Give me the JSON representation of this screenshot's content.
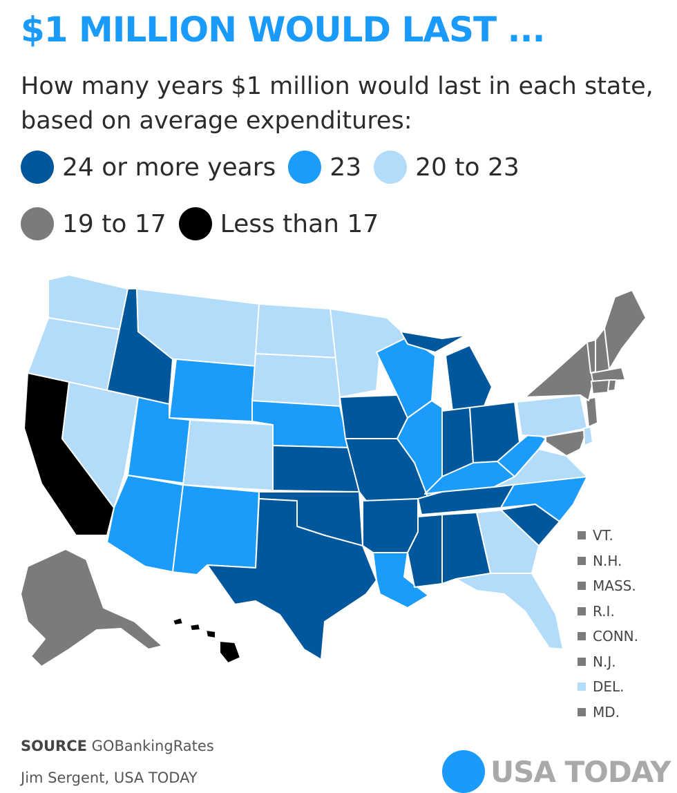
{
  "title": "$1 MILLION WOULD LAST ...",
  "subtitle": "How many years $1 million would last in each state, based on average expenditures:",
  "legend": [
    {
      "label": "24 or more years",
      "color": "#01579b"
    },
    {
      "label": "23",
      "color": "#1b9bfa"
    },
    {
      "label": "20 to 23",
      "color": "#b3dcfb"
    },
    {
      "label": "19 to 17",
      "color": "#7b7b7b"
    },
    {
      "label": "Less than 17",
      "color": "#000000"
    }
  ],
  "small_states": [
    {
      "label": "VT.",
      "color": "#7b7b7b"
    },
    {
      "label": "N.H.",
      "color": "#7b7b7b"
    },
    {
      "label": "MASS.",
      "color": "#7b7b7b"
    },
    {
      "label": "R.I.",
      "color": "#7b7b7b"
    },
    {
      "label": "CONN.",
      "color": "#7b7b7b"
    },
    {
      "label": "N.J.",
      "color": "#7b7b7b"
    },
    {
      "label": "DEL.",
      "color": "#b3dcfb"
    },
    {
      "label": "MD.",
      "color": "#7b7b7b"
    }
  ],
  "source_label": "SOURCE",
  "source_text": "GOBankingRates",
  "credit": "Jim Sergent, USA TODAY",
  "brand": "USA TODAY"
}
